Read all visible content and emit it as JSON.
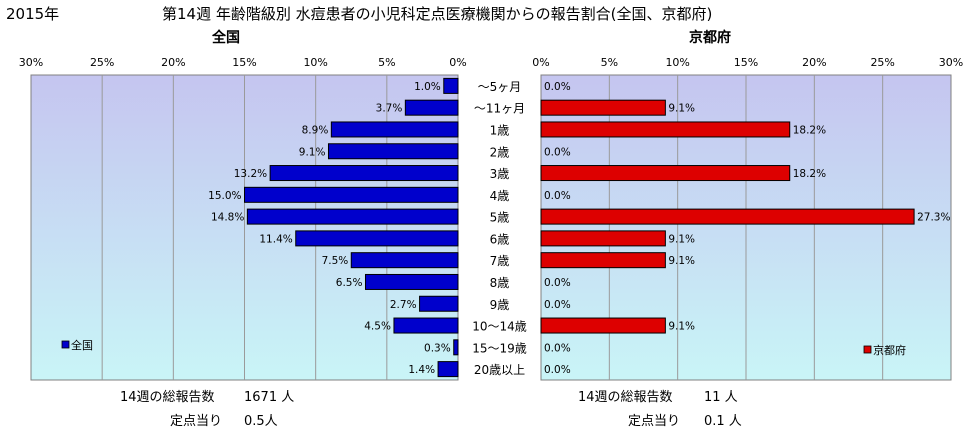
{
  "header": {
    "year": "2015年",
    "title": "第14週 年齢階級別 水痘患者の小児科定点医療機関からの報告割合(全国、京都府)"
  },
  "colors": {
    "plot_bg_top": "#c5c5f0",
    "plot_bg_bottom": "#c9f5f7",
    "national_bar": "#0000cc",
    "kyoto_bar": "#dd0000",
    "grid": "#9a9a9a"
  },
  "chart_data": [
    {
      "type": "bar",
      "orientation": "horizontal",
      "direction": "right-to-left",
      "title": "全国",
      "legend": {
        "label": "全国",
        "position": "bottom-left"
      },
      "xlim": [
        0,
        30
      ],
      "xticks": [
        "30%",
        "25%",
        "20%",
        "15%",
        "10%",
        "5%",
        "0%"
      ],
      "categories": [
        "～5ヶ月",
        "～11ヶ月",
        "1歳",
        "2歳",
        "3歳",
        "4歳",
        "5歳",
        "6歳",
        "7歳",
        "8歳",
        "9歳",
        "10～14歳",
        "15～19歳",
        "20歳以上"
      ],
      "values": [
        1.0,
        3.7,
        8.9,
        9.1,
        13.2,
        15.0,
        14.8,
        11.4,
        7.5,
        6.5,
        2.7,
        4.5,
        0.3,
        1.4
      ],
      "labels": [
        "1.0%",
        "3.7%",
        "8.9%",
        "9.1%",
        "13.2%",
        "15.0%",
        "14.8%",
        "11.4%",
        "7.5%",
        "6.5%",
        "2.7%",
        "4.5%",
        "0.3%",
        "1.4%"
      ]
    },
    {
      "type": "bar",
      "orientation": "horizontal",
      "direction": "left-to-right",
      "title": "京都府",
      "legend": {
        "label": "京都府",
        "position": "bottom-right"
      },
      "xlim": [
        0,
        30
      ],
      "xticks": [
        "0%",
        "5%",
        "10%",
        "15%",
        "20%",
        "25%",
        "30%"
      ],
      "categories": [
        "～5ヶ月",
        "～11ヶ月",
        "1歳",
        "2歳",
        "3歳",
        "4歳",
        "5歳",
        "6歳",
        "7歳",
        "8歳",
        "9歳",
        "10～14歳",
        "15～19歳",
        "20歳以上"
      ],
      "values": [
        0.0,
        9.1,
        18.2,
        0.0,
        18.2,
        0.0,
        27.3,
        9.1,
        9.1,
        0.0,
        0.0,
        9.1,
        0.0,
        0.0
      ],
      "labels": [
        "0.0%",
        "9.1%",
        "18.2%",
        "0.0%",
        "18.2%",
        "0.0%",
        "27.3%",
        "9.1%",
        "9.1%",
        "0.0%",
        "0.0%",
        "9.1%",
        "0.0%",
        "0.0%"
      ]
    }
  ],
  "stats": {
    "national": {
      "total_label": "14週の総報告数",
      "total_value": "1671 人",
      "per_site_label": "定点当り",
      "per_site_value": "0.5人"
    },
    "kyoto": {
      "total_label": "14週の総報告数",
      "total_value": "11 人",
      "per_site_label": "定点当り",
      "per_site_value": "0.1 人"
    }
  }
}
